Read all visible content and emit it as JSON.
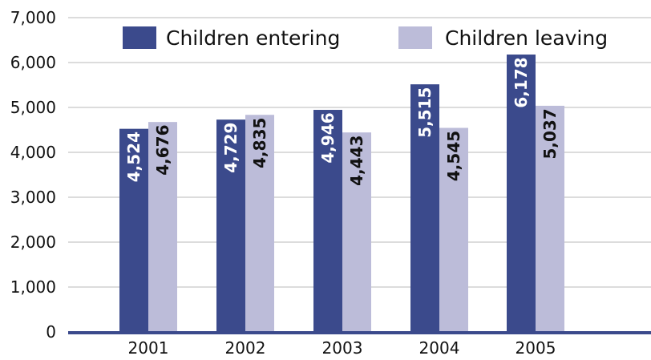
{
  "chart_data": {
    "type": "bar",
    "title": "",
    "xlabel": "",
    "ylabel": "",
    "categories": [
      "2001",
      "2002",
      "2003",
      "2004",
      "2005"
    ],
    "series": [
      {
        "name": "Children entering",
        "color": "#3b4a8c",
        "label_color": "#ffffff",
        "values": [
          4524,
          4729,
          4946,
          5515,
          6178
        ],
        "labels": [
          "4,524",
          "4,729",
          "4,946",
          "5,515",
          "6,178"
        ]
      },
      {
        "name": "Children leaving",
        "color": "#bcbcd9",
        "label_color": "#111111",
        "values": [
          4676,
          4835,
          4443,
          4545,
          5037
        ],
        "labels": [
          "4,676",
          "4,835",
          "4,443",
          "4,545",
          "5,037"
        ]
      }
    ],
    "ylim": [
      0,
      7000
    ],
    "yticks": [
      0,
      1000,
      2000,
      3000,
      4000,
      5000,
      6000,
      7000
    ],
    "ytick_labels": [
      "0",
      "1,000",
      "2,000",
      "3,000",
      "4,000",
      "5,000",
      "6,000",
      "7,000"
    ],
    "grid": true,
    "legend": "top-right",
    "axis_color": "#3b4a8c",
    "grid_color": "#b8b8b8"
  }
}
